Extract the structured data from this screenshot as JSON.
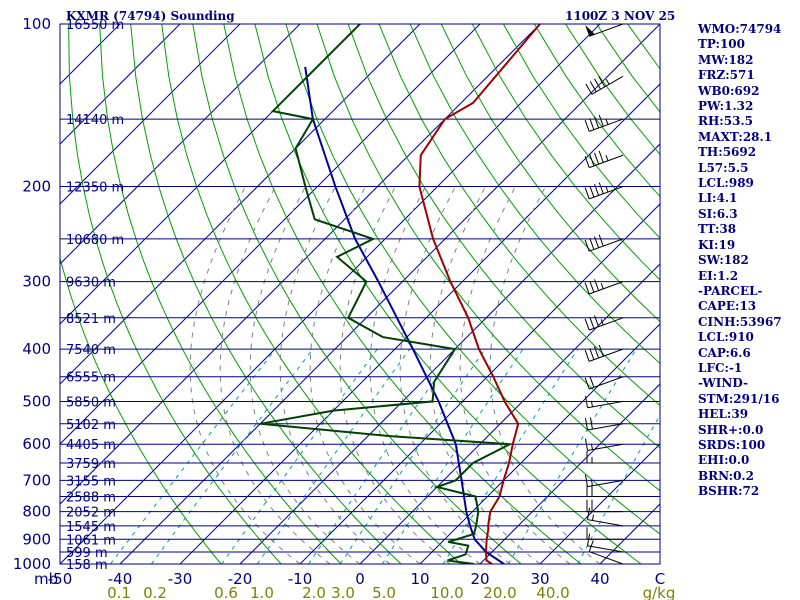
{
  "header": {
    "station_title": "KXMR (74794) Sounding",
    "valid_time": "1100Z  3 NOV 25"
  },
  "stats": [
    "WMO:74794",
    "TP:100",
    "MW:182",
    "FRZ:571",
    "WB0:692",
    "PW:1.32",
    "RH:53.5",
    "MAXT:28.1",
    "TH:5692",
    "L57:5.5",
    "LCL:989",
    "LI:4.1",
    "SI:6.3",
    "TT:38",
    "KI:19",
    "SW:182",
    "EI:1.2",
    "-PARCEL-",
    "CAPE:13",
    "CINH:53967",
    "LCL:910",
    "CAP:6.6",
    "LFC:-1",
    "-WIND-",
    "STM:291/16",
    "HEL:39",
    "SHR+:0.0",
    "SRDS:100",
    "EHI:0.0",
    "BRN:0.2",
    "BSHR:72"
  ],
  "colors": {
    "isobar": "#000080",
    "isotherm": "#0000a0",
    "dry_adiabat": "#00a000",
    "mixing_ratio": "#00a0a0",
    "moist_adiabat": "#808080",
    "temperature": "#a00000",
    "dewpoint": "#004000",
    "parcel": "#0000a0",
    "wind_barb": "#000000",
    "label_text": "#000080",
    "mixing_label_text": "#808000"
  },
  "chart_data": {
    "type": "skew-t",
    "pressure_axis": {
      "unit_label": "mb",
      "log_scale": true,
      "range": [
        1000,
        100
      ],
      "labeled_ticks": [
        "100",
        "200",
        "300",
        "400",
        "500",
        "600",
        "700",
        "800",
        "900",
        "1000"
      ]
    },
    "height_labels": [
      {
        "p": 100,
        "text": "16550 m"
      },
      {
        "p": 150,
        "text": "14140 m"
      },
      {
        "p": 200,
        "text": "12350 m"
      },
      {
        "p": 250,
        "text": "10680 m"
      },
      {
        "p": 300,
        "text": "9630 m"
      },
      {
        "p": 350,
        "text": "8521 m"
      },
      {
        "p": 400,
        "text": "7540 m"
      },
      {
        "p": 450,
        "text": "6555 m"
      },
      {
        "p": 500,
        "text": "5850 m"
      },
      {
        "p": 550,
        "text": "5102 m"
      },
      {
        "p": 600,
        "text": "4405 m"
      },
      {
        "p": 650,
        "text": "3759 m"
      },
      {
        "p": 700,
        "text": "3155 m"
      },
      {
        "p": 750,
        "text": "2588 m"
      },
      {
        "p": 800,
        "text": "2052 m"
      },
      {
        "p": 850,
        "text": "1545 m"
      },
      {
        "p": 900,
        "text": "1061 m"
      },
      {
        "p": 950,
        "text": "599 m"
      },
      {
        "p": 1000,
        "text": "158 m"
      }
    ],
    "temperature_axis": {
      "unit": "C",
      "range": [
        -50,
        50
      ],
      "ticks": [
        "-50",
        "-40",
        "-30",
        "-20",
        "-10",
        "0",
        "10",
        "20",
        "30",
        "40",
        "C"
      ]
    },
    "mixing_ratio_labels": [
      "0.1",
      "0.2",
      "0.6",
      "1.0",
      "2.0",
      "3.0",
      "5.0",
      "10.0",
      "20.0",
      "40.0",
      "g/kg"
    ],
    "temperature": [
      {
        "p": 1000,
        "t": 22.0
      },
      {
        "p": 985,
        "t": 20.5
      },
      {
        "p": 950,
        "t": 19.0
      },
      {
        "p": 925,
        "t": 18.0
      },
      {
        "p": 900,
        "t": 17.0
      },
      {
        "p": 860,
        "t": 15.5
      },
      {
        "p": 850,
        "t": 15.0
      },
      {
        "p": 800,
        "t": 13.0
      },
      {
        "p": 750,
        "t": 12.0
      },
      {
        "p": 700,
        "t": 10.0
      },
      {
        "p": 650,
        "t": 8.0
      },
      {
        "p": 600,
        "t": 5.5
      },
      {
        "p": 550,
        "t": 3.0
      },
      {
        "p": 500,
        "t": -3.0
      },
      {
        "p": 450,
        "t": -9.0
      },
      {
        "p": 400,
        "t": -16.0
      },
      {
        "p": 350,
        "t": -23.0
      },
      {
        "p": 300,
        "t": -32.0
      },
      {
        "p": 250,
        "t": -42.0
      },
      {
        "p": 200,
        "t": -53.0
      },
      {
        "p": 175,
        "t": -58.0
      },
      {
        "p": 150,
        "t": -60.0
      },
      {
        "p": 140,
        "t": -58.0
      },
      {
        "p": 100,
        "t": -60.0
      }
    ],
    "dewpoint": [
      {
        "p": 1000,
        "t": 19.0
      },
      {
        "p": 985,
        "t": 14.0
      },
      {
        "p": 960,
        "t": 16.0
      },
      {
        "p": 925,
        "t": 15.0
      },
      {
        "p": 910,
        "t": 11.0
      },
      {
        "p": 880,
        "t": 14.0
      },
      {
        "p": 850,
        "t": 13.0
      },
      {
        "p": 800,
        "t": 11.0
      },
      {
        "p": 750,
        "t": 8.0
      },
      {
        "p": 720,
        "t": 0.0
      },
      {
        "p": 700,
        "t": 2.0
      },
      {
        "p": 650,
        "t": 2.0
      },
      {
        "p": 600,
        "t": 5.0
      },
      {
        "p": 580,
        "t": -16.0
      },
      {
        "p": 550,
        "t": -40.0
      },
      {
        "p": 520,
        "t": -30.0
      },
      {
        "p": 500,
        "t": -15.0
      },
      {
        "p": 460,
        "t": -18.0
      },
      {
        "p": 400,
        "t": -20.0
      },
      {
        "p": 380,
        "t": -34.0
      },
      {
        "p": 350,
        "t": -43.0
      },
      {
        "p": 300,
        "t": -46.0
      },
      {
        "p": 270,
        "t": -55.0
      },
      {
        "p": 250,
        "t": -52.0
      },
      {
        "p": 230,
        "t": -65.0
      },
      {
        "p": 200,
        "t": -72.0
      },
      {
        "p": 170,
        "t": -80.0
      },
      {
        "p": 150,
        "t": -82.0
      },
      {
        "p": 145,
        "t": -90.0
      },
      {
        "p": 100,
        "t": -90.0
      }
    ],
    "parcel": [
      {
        "p": 1000,
        "t": 24.0
      },
      {
        "p": 950,
        "t": 19.0
      },
      {
        "p": 900,
        "t": 15.0
      },
      {
        "p": 850,
        "t": 12.0
      },
      {
        "p": 800,
        "t": 9.0
      },
      {
        "p": 700,
        "t": 3.0
      },
      {
        "p": 600,
        "t": -4.0
      },
      {
        "p": 500,
        "t": -14.0
      },
      {
        "p": 400,
        "t": -27.0
      },
      {
        "p": 300,
        "t": -44.0
      },
      {
        "p": 250,
        "t": -55.0
      },
      {
        "p": 200,
        "t": -67.0
      },
      {
        "p": 150,
        "t": -82.0
      },
      {
        "p": 120,
        "t": -92.0
      }
    ],
    "wind_barbs": [
      {
        "p": 1000,
        "dir": 290,
        "kt": 10
      },
      {
        "p": 950,
        "dir": 280,
        "kt": 10
      },
      {
        "p": 900,
        "dir": 270,
        "kt": 10
      },
      {
        "p": 850,
        "dir": 280,
        "kt": 15
      },
      {
        "p": 800,
        "dir": 270,
        "kt": 20
      },
      {
        "p": 750,
        "dir": 270,
        "kt": 20
      },
      {
        "p": 700,
        "dir": 260,
        "kt": 15
      },
      {
        "p": 650,
        "dir": 270,
        "kt": 15
      },
      {
        "p": 600,
        "dir": 260,
        "kt": 15
      },
      {
        "p": 550,
        "dir": 260,
        "kt": 20
      },
      {
        "p": 500,
        "dir": 260,
        "kt": 15
      },
      {
        "p": 450,
        "dir": 250,
        "kt": 20
      },
      {
        "p": 400,
        "dir": 250,
        "kt": 40
      },
      {
        "p": 350,
        "dir": 250,
        "kt": 35
      },
      {
        "p": 300,
        "dir": 250,
        "kt": 35
      },
      {
        "p": 250,
        "dir": 250,
        "kt": 40
      },
      {
        "p": 200,
        "dir": 250,
        "kt": 45
      },
      {
        "p": 175,
        "dir": 250,
        "kt": 45
      },
      {
        "p": 150,
        "dir": 250,
        "kt": 45
      },
      {
        "p": 125,
        "dir": 240,
        "kt": 45
      },
      {
        "p": 100,
        "dir": 250,
        "kt": 50
      }
    ],
    "grid": true
  }
}
